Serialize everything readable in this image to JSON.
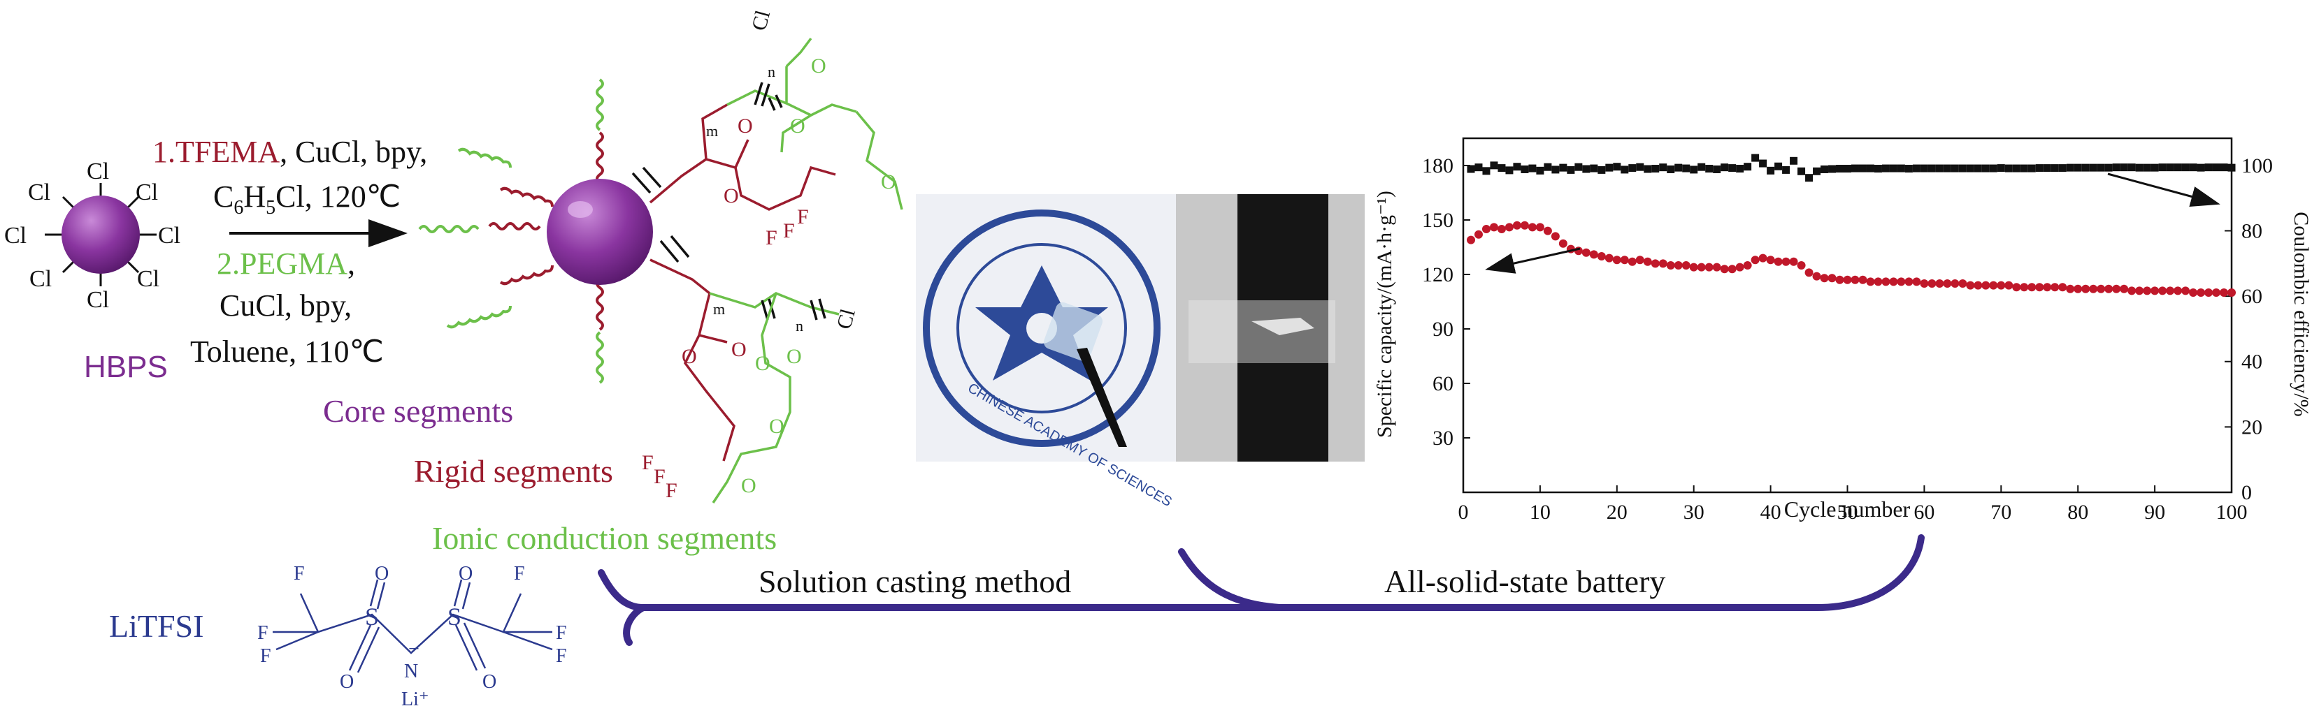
{
  "reaction": {
    "core_name": "HBPS",
    "chloride": "Cl",
    "step1_reagent": "1.TFEMA",
    "step1_catalysts": ", CuCl, bpy,",
    "step1_solvent_c": "C",
    "step1_solvent_sub6": "6",
    "step1_solvent_h": "H",
    "step1_solvent_sub5": "5",
    "step1_solvent_tail": "Cl, 120℃",
    "step2_reagent": "2.PEGMA",
    "step2_comma": ",",
    "step2_catalysts": "CuCl, bpy,",
    "step2_solvent": "Toluene, 110℃"
  },
  "polymer": {
    "chloride": "Cl",
    "oxygen": "O",
    "fluorine": "F",
    "sub_m": "m",
    "sub_n": "n"
  },
  "segments": {
    "core": "Core segments",
    "rigid": "Rigid segments",
    "ionic": "Ionic conduction segments"
  },
  "salt": {
    "name": "LiTFSI",
    "fluorine": "F",
    "sulfur": "S",
    "oxygen": "O",
    "nitrogen": "N",
    "anion_charge": "−",
    "lithium": "Li⁺"
  },
  "photo": {
    "seal_text": "CHINESE ACADEMY OF SCIENCES"
  },
  "process": {
    "casting": "Solution casting method",
    "battery": "All-solid-state battery"
  },
  "colors": {
    "core": "#7b2c8f",
    "rigid": "#9b1c2e",
    "ionic": "#6cc04a",
    "salt": "#2b3a8f",
    "arrow": "#3b2a8a",
    "capacity": "#c0182a",
    "efficiency": "#111111"
  },
  "chart_data": {
    "type": "scatter",
    "xlabel": "Cycle number",
    "ylabel_left": "Specific capacity/(mA·h·g⁻¹)",
    "ylabel_right": "Coulombic efficiency/%",
    "xlim": [
      0,
      100
    ],
    "ylim_left": [
      0,
      195
    ],
    "ylim_right": [
      0,
      108.3
    ],
    "x_ticks": [
      "0",
      "10",
      "20",
      "30",
      "40",
      "50",
      "60",
      "70",
      "80",
      "90",
      "100"
    ],
    "y_ticks_left": [
      "30",
      "60",
      "90",
      "120",
      "150",
      "180"
    ],
    "y_ticks_right": [
      "0",
      "20",
      "40",
      "60",
      "80",
      "100"
    ],
    "grid": false,
    "series": [
      {
        "axis": "right",
        "color": "#111111",
        "x": [
          1,
          2,
          3,
          4,
          5,
          6,
          7,
          8,
          9,
          10,
          11,
          12,
          13,
          14,
          15,
          16,
          17,
          18,
          19,
          20,
          21,
          22,
          23,
          24,
          25,
          26,
          27,
          28,
          29,
          30,
          31,
          32,
          33,
          34,
          35,
          36,
          37,
          38,
          39,
          40,
          41,
          42,
          43,
          44,
          45,
          46,
          47,
          48,
          49,
          50,
          51,
          52,
          53,
          54,
          55,
          56,
          57,
          58,
          59,
          60,
          61,
          62,
          63,
          64,
          65,
          66,
          67,
          68,
          69,
          70,
          71,
          72,
          73,
          74,
          75,
          76,
          77,
          78,
          79,
          80,
          81,
          82,
          83,
          84,
          85,
          86,
          87,
          88,
          89,
          90,
          91,
          92,
          93,
          94,
          95,
          96,
          97,
          98,
          99,
          100
        ],
        "values": [
          98.9,
          99.4,
          98.3,
          100.0,
          99.2,
          98.5,
          99.6,
          98.8,
          99.1,
          98.4,
          99.5,
          98.7,
          99.3,
          98.6,
          99.5,
          98.9,
          99.1,
          98.6,
          99.3,
          99.6,
          98.7,
          99.2,
          99.5,
          98.9,
          99.0,
          99.4,
          98.8,
          99.3,
          99.1,
          98.7,
          99.5,
          99.0,
          98.8,
          99.4,
          99.2,
          99.0,
          99.6,
          102.3,
          100.6,
          98.4,
          99.7,
          98.6,
          101.4,
          98.2,
          96.2,
          98.2,
          98.8,
          98.9,
          99.0,
          99.0,
          99.1,
          99.1,
          99.1,
          99.0,
          99.1,
          99.1,
          99.1,
          99.0,
          99.1,
          99.1,
          99.1,
          99.1,
          99.1,
          99.1,
          99.1,
          99.1,
          99.1,
          99.1,
          99.1,
          99.2,
          99.1,
          99.1,
          99.1,
          99.1,
          99.2,
          99.2,
          99.2,
          99.2,
          99.3,
          99.3,
          99.3,
          99.3,
          99.3,
          99.3,
          99.4,
          99.4,
          99.4,
          99.3,
          99.3,
          99.3,
          99.4,
          99.4,
          99.4,
          99.4,
          99.4,
          99.3,
          99.4,
          99.4,
          99.4,
          99.3
        ]
      },
      {
        "axis": "left",
        "color": "#c0182a",
        "x": [
          1,
          2,
          3,
          4,
          5,
          6,
          7,
          8,
          9,
          10,
          11,
          12,
          13,
          14,
          15,
          16,
          17,
          18,
          19,
          20,
          21,
          22,
          23,
          24,
          25,
          26,
          27,
          28,
          29,
          30,
          31,
          32,
          33,
          34,
          35,
          36,
          37,
          38,
          39,
          40,
          41,
          42,
          43,
          44,
          45,
          46,
          47,
          48,
          49,
          50,
          51,
          52,
          53,
          54,
          55,
          56,
          57,
          58,
          59,
          60,
          61,
          62,
          63,
          64,
          65,
          66,
          67,
          68,
          69,
          70,
          71,
          72,
          73,
          74,
          75,
          76,
          77,
          78,
          79,
          80,
          81,
          82,
          83,
          84,
          85,
          86,
          87,
          88,
          89,
          90,
          91,
          92,
          93,
          94,
          95,
          96,
          97,
          98,
          99,
          100
        ],
        "values": [
          139,
          142,
          145,
          146,
          145,
          146,
          147,
          147,
          146,
          146,
          144,
          141,
          137,
          134,
          133,
          132,
          131,
          130,
          129,
          128,
          128,
          127,
          128,
          127,
          126,
          126,
          125,
          125,
          125,
          124,
          124,
          124,
          124,
          123,
          123,
          124,
          125,
          128,
          129,
          128,
          127,
          127,
          127,
          125,
          121,
          119,
          118,
          118,
          117,
          117,
          117,
          117,
          116,
          116,
          116,
          116,
          116,
          116,
          116,
          115,
          115,
          115,
          115,
          115,
          115,
          114,
          114,
          114,
          114,
          114,
          114,
          113,
          113,
          113,
          113,
          113,
          113,
          113,
          112,
          112,
          112,
          112,
          112,
          112,
          112,
          112,
          111,
          111,
          111,
          111,
          111,
          111,
          111,
          111,
          110,
          110,
          110,
          110,
          110,
          110
        ]
      }
    ]
  }
}
